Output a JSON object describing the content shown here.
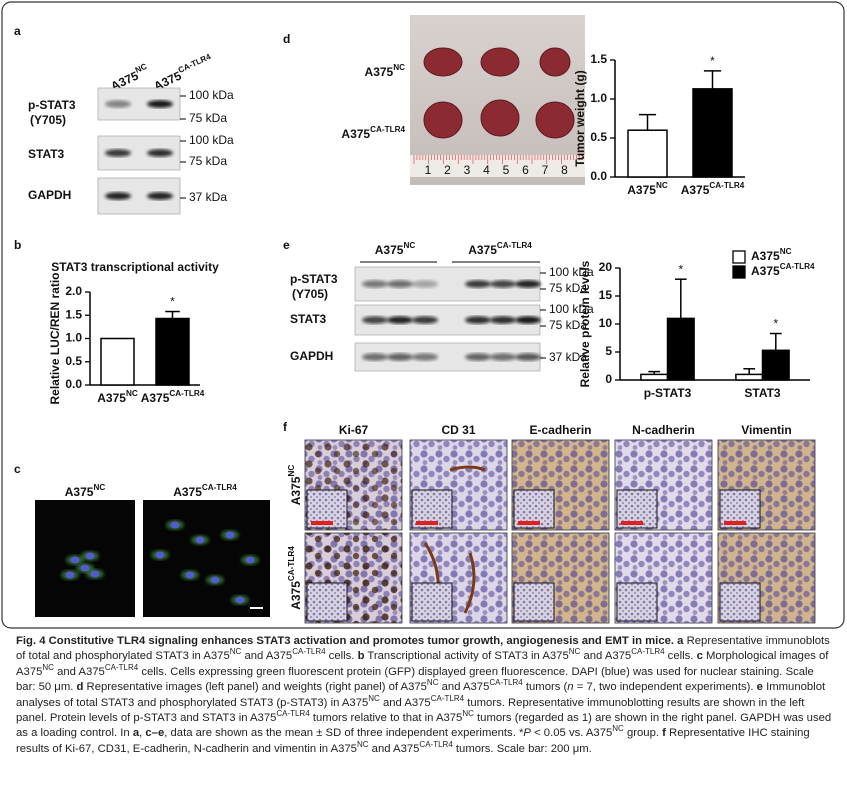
{
  "panels": {
    "a": {
      "letter": "a",
      "columns": [
        {
          "text": "A375",
          "sup": "NC"
        },
        {
          "text": "A375",
          "sup": "CA-TLR4"
        }
      ],
      "rows": [
        {
          "label": "p-STAT3",
          "sublabel": "(Y705)"
        },
        {
          "label": "STAT3"
        },
        {
          "label": "GAPDH"
        }
      ],
      "markers": [
        "100 kDa",
        "75 kDa",
        "100 kDa",
        "75 kDa",
        "37 kDa"
      ]
    },
    "b": {
      "letter": "b",
      "chart": {
        "type": "bar",
        "title": "STAT3 transcriptional activity",
        "ylabel": "Relative LUC/REN ratio",
        "categories": [
          {
            "text": "A375",
            "sup": "NC"
          },
          {
            "text": "A375",
            "sup": "CA-TLR4"
          }
        ],
        "values": [
          1.0,
          1.43
        ],
        "errors": [
          null,
          0.15
        ],
        "colors": [
          "#ffffff",
          "#000000"
        ],
        "ylim": [
          0,
          2
        ],
        "yticks": [
          {
            "value": 0,
            "label": "0.0"
          },
          {
            "value": 0.5,
            "label": "0.5"
          },
          {
            "value": 1,
            "label": "1.0"
          },
          {
            "value": 1.5,
            "label": "1.5"
          },
          {
            "value": 2,
            "label": "2.0"
          }
        ],
        "annotations": [
          {
            "x": 1,
            "text": "*"
          }
        ]
      }
    },
    "c": {
      "letter": "c",
      "columns": [
        {
          "text": "A375",
          "sup": "NC"
        },
        {
          "text": "A375",
          "sup": "CA-TLR4"
        }
      ]
    },
    "d": {
      "letter": "d",
      "rows": [
        {
          "text": "A375",
          "sup": "NC"
        },
        {
          "text": "A375",
          "sup": "CA-TLR4"
        }
      ],
      "ruler": [
        "1",
        "2",
        "3",
        "4",
        "5",
        "6",
        "7",
        "8"
      ],
      "chart": {
        "type": "bar",
        "ylabel": "Tumor weight (g)",
        "categories": [
          {
            "text": "A375",
            "sup": "NC"
          },
          {
            "text": "A375",
            "sup": "CA-TLR4"
          }
        ],
        "values": [
          0.6,
          1.13
        ],
        "errors": [
          0.2,
          0.23
        ],
        "colors": [
          "#ffffff",
          "#000000"
        ],
        "ylim": [
          0,
          1.5
        ],
        "yticks": [
          {
            "value": 0,
            "label": "0.0"
          },
          {
            "value": 0.5,
            "label": "0.5"
          },
          {
            "value": 1,
            "label": "1.0"
          },
          {
            "value": 1.5,
            "label": "1.5"
          }
        ],
        "annotations": [
          {
            "x": 1,
            "text": "*"
          }
        ]
      }
    },
    "e": {
      "letter": "e",
      "columns": [
        {
          "text": "A375",
          "sup": "NC"
        },
        {
          "text": "A375",
          "sup": "CA-TLR4"
        }
      ],
      "rows": [
        {
          "label": "p-STAT3",
          "sublabel": "(Y705)"
        },
        {
          "label": "STAT3"
        },
        {
          "label": "GAPDH"
        }
      ],
      "markers": [
        "100 kDa",
        "75 kDa",
        "100 kDa",
        "75 kDa",
        "37 kDa"
      ],
      "chart": {
        "type": "bar",
        "ylabel": "Relative protein levels",
        "categories": [
          "p-STAT3",
          "STAT3"
        ],
        "series": [
          {
            "name": {
              "text": "A375",
              "sup": "NC"
            },
            "color": "#ffffff",
            "values": [
              1.0,
              1.0
            ],
            "errors": [
              0.5,
              1.0
            ]
          },
          {
            "name": {
              "text": "A375",
              "sup": "CA-TLR4"
            },
            "color": "#000000",
            "values": [
              11.0,
              5.3
            ],
            "errors": [
              7.0,
              3.0
            ]
          }
        ],
        "ylim": [
          0,
          20
        ],
        "yticks": [
          0,
          5,
          10,
          15,
          20
        ],
        "annotations": [
          {
            "series": 1,
            "x": 0,
            "text": "*"
          },
          {
            "series": 1,
            "x": 1,
            "text": "*"
          }
        ]
      }
    },
    "f": {
      "letter": "f",
      "columns": [
        "Ki-67",
        "CD 31",
        "E-cadherin",
        "N-cadherin",
        "Vimentin"
      ],
      "rows": [
        {
          "text": "A375",
          "sup": "NC"
        },
        {
          "text": "A375",
          "sup": "CA-TLR4"
        }
      ]
    }
  },
  "caption": [
    {
      "b": "Fig. 4 Constitutive TLR4 signaling enhances STAT3 activation and promotes tumor growth, angiogenesis and EMT in mice."
    },
    " ",
    {
      "b": "a"
    },
    " Representative immunoblots of total and phosphorylated STAT3 in A375",
    {
      "sup": "NC"
    },
    " and A375",
    {
      "sup": "CA-TLR4"
    },
    " cells. ",
    {
      "b": "b"
    },
    " Transcriptional activity of STAT3 in A375",
    {
      "sup": "NC"
    },
    " and A375",
    {
      "sup": "CA-TLR4"
    },
    " cells. ",
    {
      "b": "c"
    },
    " Morphological images of A375",
    {
      "sup": "NC"
    },
    " and A375",
    {
      "sup": "CA-TLR4"
    },
    " cells. Cells expressing green fluorescent protein (GFP) displayed green fluorescence. DAPI (blue) was used for nuclear staining. Scale bar: 50 μm. ",
    {
      "b": "d"
    },
    " Representative images (left panel) and weights (right panel) of A375",
    {
      "sup": "NC"
    },
    " and A375",
    {
      "sup": "CA-TLR4"
    },
    " tumors (",
    {
      "i": "n"
    },
    " = 7, two independent experiments). ",
    {
      "b": "e"
    },
    " Immunoblot analyses of total STAT3 and phosphorylated STAT3 (p-STAT3) in A375",
    {
      "sup": "NC"
    },
    " and A375",
    {
      "sup": "CA-TLR4"
    },
    " tumors. Representative immunoblotting results are shown in the left panel. Protein levels of p-STAT3 and STAT3 in A375",
    {
      "sup": "CA-TLR4"
    },
    " tumors relative to that in A375",
    {
      "sup": "NC"
    },
    " tumors (regarded as 1) are shown in the right panel. GAPDH was used as a loading control. In ",
    {
      "b": "a"
    },
    ", ",
    {
      "b": "c–e"
    },
    ", data are shown as the mean ± SD of three independent experiments. *",
    {
      "i": "P"
    },
    " < 0.05 vs. A375",
    {
      "sup": "NC"
    },
    " group. ",
    {
      "b": "f"
    },
    " Representative IHC staining results of Ki-67, CD31, E-cadherin, N-cadherin and vimentin in A375",
    {
      "sup": "NC"
    },
    " and A375",
    {
      "sup": "CA-TLR4"
    },
    " tumors. Scale bar: 200 μm."
  ]
}
